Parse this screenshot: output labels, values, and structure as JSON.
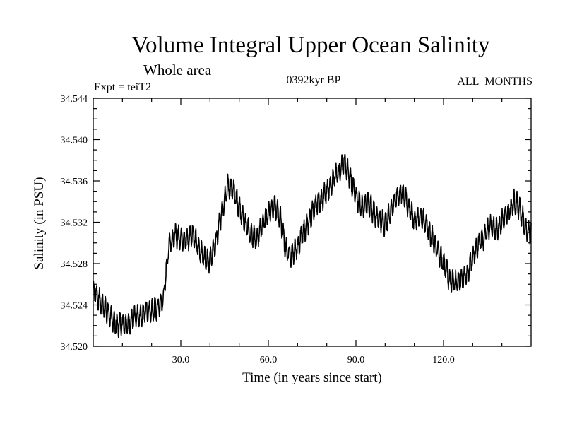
{
  "chart_data": {
    "type": "line",
    "title": "Volume Integral Upper Ocean Salinity",
    "subtitle": "Whole area",
    "experiment": "Expt = teiT2",
    "period": "0392kyr BP",
    "months": "ALL_MONTHS",
    "xlabel": "Time (in years since start)",
    "ylabel": "Salinity (in PSU)",
    "xlim": [
      0,
      150
    ],
    "ylim": [
      34.52,
      34.544
    ],
    "x_ticks": [
      30,
      60,
      90,
      120
    ],
    "x_tick_labels": [
      "30.0",
      "60.0",
      "90.0",
      "120.0"
    ],
    "y_ticks": [
      34.52,
      34.524,
      34.528,
      34.532,
      34.536,
      34.54,
      34.544
    ],
    "y_tick_labels": [
      "34.520",
      "34.524",
      "34.528",
      "34.532",
      "34.536",
      "34.540",
      "34.544"
    ],
    "grid": false,
    "series": [
      {
        "name": "salinity",
        "seasonal_amplitude_psu": 0.0009,
        "x": [
          0,
          2,
          4,
          6,
          8,
          10,
          12,
          14,
          16,
          18,
          20,
          22,
          24,
          26,
          28,
          30,
          32,
          34,
          36,
          38,
          40,
          42,
          44,
          46,
          48,
          50,
          52,
          54,
          56,
          58,
          60,
          62,
          64,
          66,
          68,
          70,
          72,
          74,
          76,
          78,
          80,
          82,
          84,
          86,
          88,
          90,
          92,
          94,
          96,
          98,
          100,
          102,
          104,
          106,
          108,
          110,
          112,
          114,
          116,
          118,
          120,
          122,
          124,
          126,
          128,
          130,
          132,
          134,
          136,
          138,
          140,
          142,
          144,
          146,
          148,
          150
        ],
        "values": [
          34.5255,
          34.5245,
          34.5238,
          34.5228,
          34.522,
          34.5223,
          34.5222,
          34.5227,
          34.5228,
          34.5235,
          34.5234,
          34.5237,
          34.5245,
          34.53,
          34.5307,
          34.5306,
          34.5302,
          34.531,
          34.5295,
          34.5286,
          34.5283,
          34.53,
          34.533,
          34.5355,
          34.535,
          34.5335,
          34.532,
          34.5308,
          34.5303,
          34.5318,
          34.533,
          34.5336,
          34.5325,
          34.5293,
          34.5287,
          34.5297,
          34.531,
          34.5322,
          34.5337,
          34.534,
          34.535,
          34.536,
          34.5368,
          34.5378,
          34.5363,
          34.5345,
          34.5335,
          34.534,
          34.533,
          34.5323,
          34.5318,
          34.5332,
          34.5345,
          34.535,
          34.5335,
          34.5323,
          34.5325,
          34.532,
          34.5305,
          34.5292,
          34.5281,
          34.5265,
          34.5262,
          34.5263,
          34.527,
          34.5285,
          34.53,
          34.5305,
          34.5318,
          34.5312,
          34.5321,
          34.5328,
          34.534,
          34.5335,
          34.5315,
          34.531
        ]
      }
    ]
  }
}
